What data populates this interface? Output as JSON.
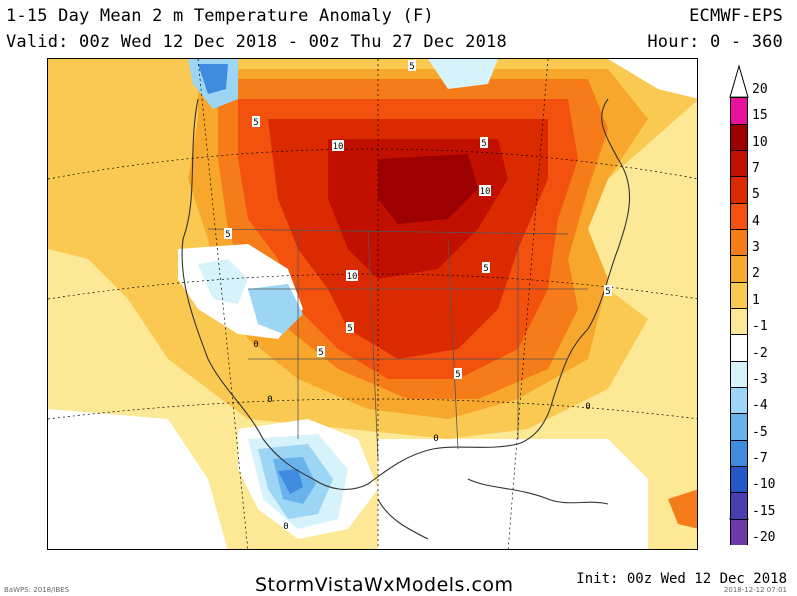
{
  "header": {
    "title": "1-15 Day Mean 2 m Temperature Anomaly (F)",
    "valid": "Valid: 00z Wed 12 Dec 2018 - 00z Thu 27 Dec 2018",
    "model": "ECMWF-EPS",
    "hours": "Hour: 0 - 360"
  },
  "footer": {
    "site": "StormVistaWxModels.com",
    "init": "Init: 00z Wed 12 Dec 2018",
    "tiny_left": "BaWPS: 2018/IBES",
    "tiny_right": "2018-12-12 07:01"
  },
  "colorbar": {
    "labels": [
      "20",
      "15",
      "10",
      "7",
      "5",
      "4",
      "3",
      "2",
      "1",
      "-1",
      "-2",
      "-3",
      "-4",
      "-5",
      "-7",
      "-10",
      "-15",
      "-20"
    ],
    "colors": [
      "#e8139a",
      "#9c0000",
      "#c21000",
      "#dc2a00",
      "#f2520d",
      "#f57c18",
      "#f7a72b",
      "#f9c952",
      "#fde895",
      "#ffffff",
      "#d6f2fb",
      "#9dd6f4",
      "#69b3ec",
      "#3f8be0",
      "#2458c8",
      "#4a3fb0",
      "#6b3aa8",
      "#8a18c8"
    ]
  },
  "map": {
    "contour_labels": [
      "10",
      "5",
      "5",
      "10",
      "5",
      "5",
      "10",
      "5",
      "5",
      "5",
      "5",
      "5"
    ],
    "zero_labels": [
      "0",
      "0",
      "0",
      "0",
      "0"
    ]
  }
}
